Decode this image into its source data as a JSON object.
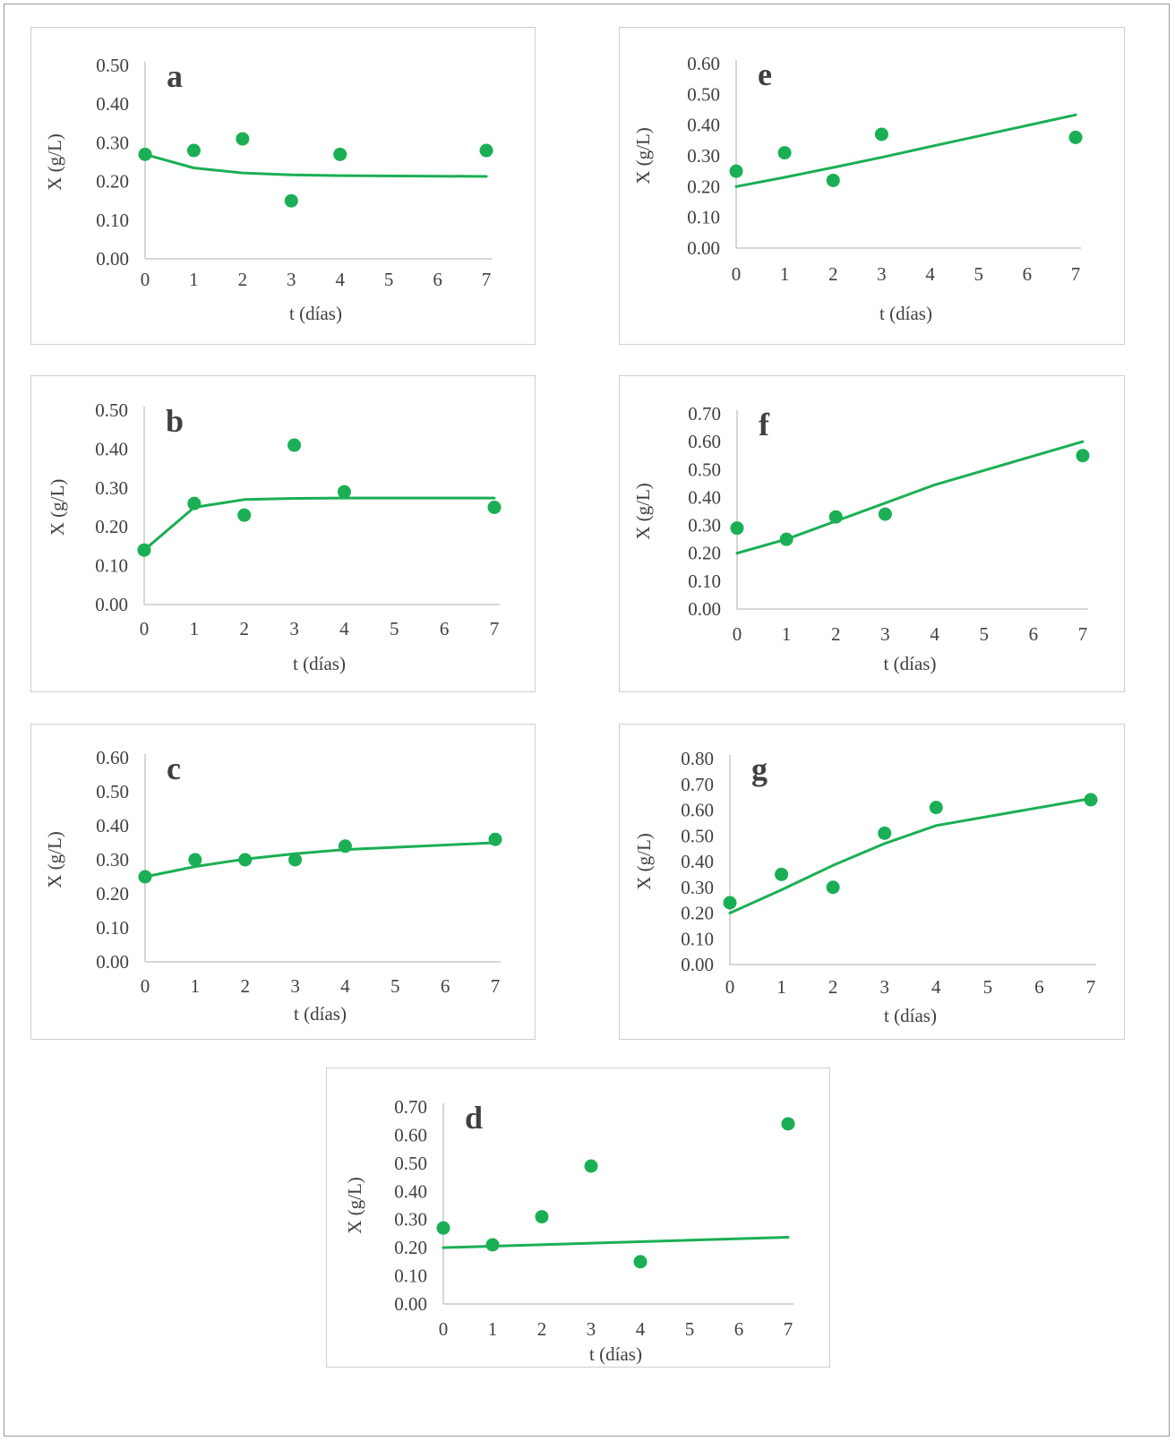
{
  "figure": {
    "series_color": "#1aaf54"
  },
  "chart_data": [
    {
      "type": "scatter",
      "label": "a",
      "xlabel": "t (días)",
      "ylabel": "X (g/L)",
      "xlim": [
        0,
        7
      ],
      "ylim": [
        0,
        0.5
      ],
      "xticks": [
        "0",
        "1",
        "2",
        "3",
        "4",
        "5",
        "6",
        "7"
      ],
      "yticks": [
        "0.00",
        "0.10",
        "0.20",
        "0.30",
        "0.40",
        "0.50"
      ],
      "points": [
        [
          0,
          0.27
        ],
        [
          1,
          0.28
        ],
        [
          2,
          0.31
        ],
        [
          3,
          0.15
        ],
        [
          4,
          0.27
        ],
        [
          7,
          0.28
        ]
      ],
      "model": [
        [
          0,
          0.27
        ],
        [
          1,
          0.235
        ],
        [
          2,
          0.222
        ],
        [
          3,
          0.217
        ],
        [
          4,
          0.215
        ],
        [
          7,
          0.213
        ]
      ]
    },
    {
      "type": "scatter",
      "label": "b",
      "xlabel": "t (días)",
      "ylabel": "X (g/L)",
      "xlim": [
        0,
        7
      ],
      "ylim": [
        0,
        0.5
      ],
      "xticks": [
        "0",
        "1",
        "2",
        "3",
        "4",
        "5",
        "6",
        "7"
      ],
      "yticks": [
        "0.00",
        "0.10",
        "0.20",
        "0.30",
        "0.40",
        "0.50"
      ],
      "points": [
        [
          0,
          0.14
        ],
        [
          1,
          0.26
        ],
        [
          2,
          0.23
        ],
        [
          3,
          0.41
        ],
        [
          4,
          0.29
        ],
        [
          7,
          0.25
        ]
      ],
      "model": [
        [
          0,
          0.14
        ],
        [
          1,
          0.25
        ],
        [
          2,
          0.27
        ],
        [
          3,
          0.273
        ],
        [
          4,
          0.274
        ],
        [
          7,
          0.274
        ]
      ]
    },
    {
      "type": "scatter",
      "label": "c",
      "xlabel": "t (días)",
      "ylabel": "X (g/L)",
      "xlim": [
        0,
        7
      ],
      "ylim": [
        0,
        0.6
      ],
      "xticks": [
        "0",
        "1",
        "2",
        "3",
        "4",
        "5",
        "6",
        "7"
      ],
      "yticks": [
        "0.00",
        "0.10",
        "0.20",
        "0.30",
        "0.40",
        "0.50",
        "0.60"
      ],
      "points": [
        [
          0,
          0.25
        ],
        [
          1,
          0.3
        ],
        [
          2,
          0.3
        ],
        [
          3,
          0.3
        ],
        [
          4,
          0.34
        ],
        [
          7,
          0.36
        ]
      ],
      "model": [
        [
          0,
          0.25
        ],
        [
          1,
          0.28
        ],
        [
          2,
          0.302
        ],
        [
          3,
          0.318
        ],
        [
          4,
          0.33
        ],
        [
          7,
          0.35
        ]
      ]
    },
    {
      "type": "scatter",
      "label": "d",
      "xlabel": "t (días)",
      "ylabel": "X (g/L)",
      "xlim": [
        0,
        7
      ],
      "ylim": [
        0,
        0.7
      ],
      "xticks": [
        "0",
        "1",
        "2",
        "3",
        "4",
        "5",
        "6",
        "7"
      ],
      "yticks": [
        "0.00",
        "0.10",
        "0.20",
        "0.30",
        "0.40",
        "0.50",
        "0.60",
        "0.70"
      ],
      "points": [
        [
          0,
          0.27
        ],
        [
          1,
          0.21
        ],
        [
          2,
          0.31
        ],
        [
          3,
          0.49
        ],
        [
          4,
          0.15
        ],
        [
          7,
          0.64
        ]
      ],
      "model": [
        [
          0,
          0.2
        ],
        [
          7,
          0.237
        ]
      ]
    },
    {
      "type": "scatter",
      "label": "e",
      "xlabel": "t (días)",
      "ylabel": "X (g/L)",
      "xlim": [
        0,
        7
      ],
      "ylim": [
        0,
        0.6
      ],
      "xticks": [
        "0",
        "1",
        "2",
        "3",
        "4",
        "5",
        "6",
        "7"
      ],
      "yticks": [
        "0.00",
        "0.10",
        "0.20",
        "0.30",
        "0.40",
        "0.50",
        "0.60"
      ],
      "points": [
        [
          0,
          0.25
        ],
        [
          1,
          0.31
        ],
        [
          2,
          0.22
        ],
        [
          3,
          0.37
        ],
        [
          7,
          0.36
        ]
      ],
      "model": [
        [
          0,
          0.2
        ],
        [
          1,
          0.23
        ],
        [
          2,
          0.262
        ],
        [
          3,
          0.295
        ],
        [
          4,
          0.33
        ],
        [
          7,
          0.433
        ]
      ]
    },
    {
      "type": "scatter",
      "label": "f",
      "xlabel": "t (días)",
      "ylabel": "X (g/L)",
      "xlim": [
        0,
        7
      ],
      "ylim": [
        0,
        0.7
      ],
      "xticks": [
        "0",
        "1",
        "2",
        "3",
        "4",
        "5",
        "6",
        "7"
      ],
      "yticks": [
        "0.00",
        "0.10",
        "0.20",
        "0.30",
        "0.40",
        "0.50",
        "0.60",
        "0.70"
      ],
      "points": [
        [
          0,
          0.29
        ],
        [
          1,
          0.25
        ],
        [
          2,
          0.33
        ],
        [
          3,
          0.34
        ],
        [
          7,
          0.55
        ]
      ],
      "model": [
        [
          0,
          0.2
        ],
        [
          1,
          0.25
        ],
        [
          2,
          0.315
        ],
        [
          3,
          0.38
        ],
        [
          4,
          0.445
        ],
        [
          7,
          0.6
        ]
      ]
    },
    {
      "type": "scatter",
      "label": "g",
      "xlabel": "t (días)",
      "ylabel": "X (g/L)",
      "xlim": [
        0,
        7
      ],
      "ylim": [
        0,
        0.8
      ],
      "xticks": [
        "0",
        "1",
        "2",
        "3",
        "4",
        "5",
        "6",
        "7"
      ],
      "yticks": [
        "0.00",
        "0.10",
        "0.20",
        "0.30",
        "0.40",
        "0.50",
        "0.60",
        "0.70",
        "0.80"
      ],
      "points": [
        [
          0,
          0.24
        ],
        [
          1,
          0.35
        ],
        [
          2,
          0.3
        ],
        [
          3,
          0.51
        ],
        [
          4,
          0.61
        ],
        [
          7,
          0.64
        ]
      ],
      "model": [
        [
          0,
          0.2
        ],
        [
          1,
          0.29
        ],
        [
          2,
          0.385
        ],
        [
          3,
          0.47
        ],
        [
          4,
          0.54
        ],
        [
          7,
          0.645
        ]
      ]
    }
  ]
}
